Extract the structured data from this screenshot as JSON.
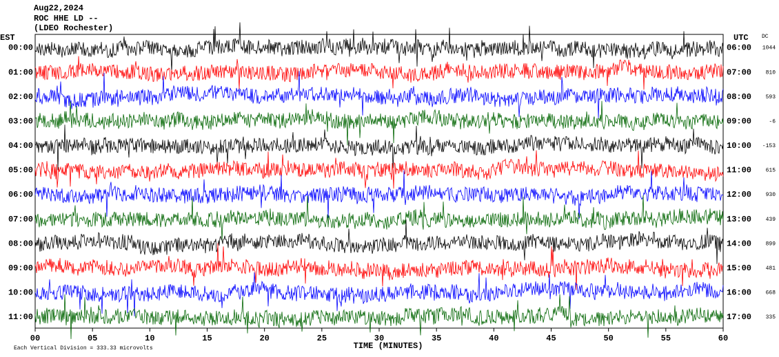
{
  "header": {
    "date": "Aug22,2024",
    "station": "ROC HHE LD --",
    "location": "(LDEO Rochester)"
  },
  "left_zone": "EST",
  "right_zone": "UTC",
  "dc_label": "DC",
  "rows": [
    {
      "est": "00:00",
      "utc": "06:00",
      "dc": 1044
    },
    {
      "est": "01:00",
      "utc": "07:00",
      "dc": 810
    },
    {
      "est": "02:00",
      "utc": "08:00",
      "dc": 593
    },
    {
      "est": "03:00",
      "utc": "09:00",
      "dc": -6
    },
    {
      "est": "04:00",
      "utc": "10:00",
      "dc": -153
    },
    {
      "est": "05:00",
      "utc": "11:00",
      "dc": 615
    },
    {
      "est": "06:00",
      "utc": "12:00",
      "dc": 930
    },
    {
      "est": "07:00",
      "utc": "13:00",
      "dc": 439
    },
    {
      "est": "08:00",
      "utc": "14:00",
      "dc": 899
    },
    {
      "est": "09:00",
      "utc": "15:00",
      "dc": 481
    },
    {
      "est": "10:00",
      "utc": "16:00",
      "dc": 668
    },
    {
      "est": "11:00",
      "utc": "17:00",
      "dc": 335
    }
  ],
  "x_ticks": [
    "00",
    "05",
    "10",
    "15",
    "20",
    "25",
    "30",
    "35",
    "40",
    "45",
    "50",
    "55",
    "60"
  ],
  "x_title": "TIME (MINUTES)",
  "footer": "Each Vertical Division =  333.33 microvolts"
}
